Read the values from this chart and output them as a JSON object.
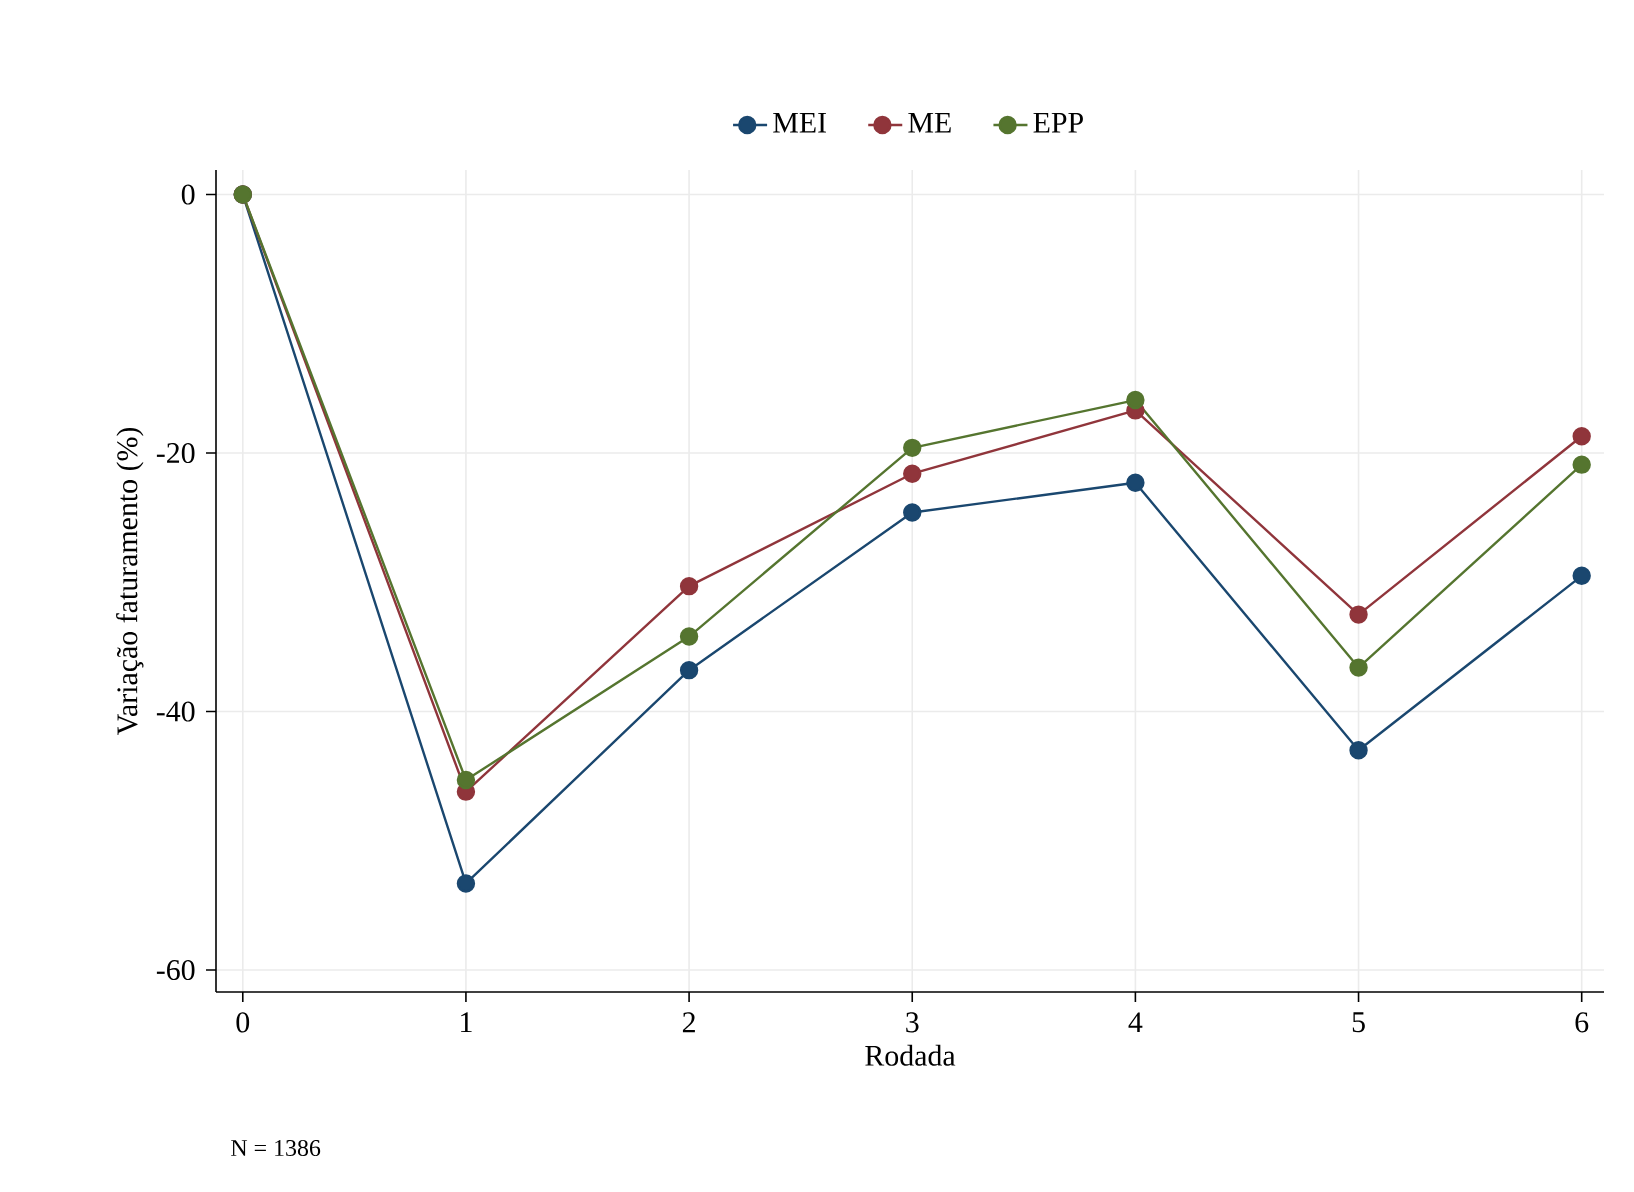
{
  "chart_data": {
    "type": "line",
    "xlabel": "Rodada",
    "ylabel": "Variação faturamento (%)",
    "x": [
      0,
      1,
      2,
      3,
      4,
      5,
      6
    ],
    "series": [
      {
        "name": "MEI",
        "color": "#1a476f",
        "values": [
          0,
          -53.3,
          -36.8,
          -24.6,
          -22.3,
          -43.0,
          -29.5
        ]
      },
      {
        "name": "ME",
        "color": "#90353b",
        "values": [
          0,
          -46.2,
          -30.3,
          -21.6,
          -16.7,
          -32.5,
          -18.7
        ]
      },
      {
        "name": "EPP",
        "color": "#55752f",
        "values": [
          0,
          -45.3,
          -34.2,
          -19.6,
          -15.9,
          -36.6,
          -20.9
        ]
      }
    ],
    "xlim": [
      -0.12,
      6.1
    ],
    "ylim": [
      -61.7,
      1.9
    ],
    "xticks": [
      0,
      1,
      2,
      3,
      4,
      5,
      6
    ],
    "yticks": [
      0,
      -20,
      -40,
      -60
    ],
    "grid": true,
    "legend": "top",
    "marker": "circle",
    "line_style": "solid",
    "annotations": [
      "N = 1386"
    ]
  }
}
